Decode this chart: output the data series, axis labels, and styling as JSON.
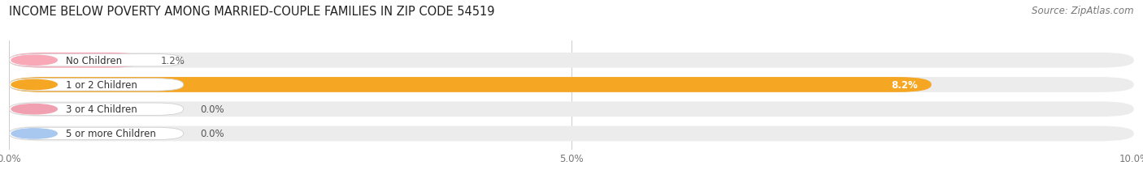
{
  "title": "INCOME BELOW POVERTY AMONG MARRIED-COUPLE FAMILIES IN ZIP CODE 54519",
  "source": "Source: ZipAtlas.com",
  "categories": [
    "No Children",
    "1 or 2 Children",
    "3 or 4 Children",
    "5 or more Children"
  ],
  "values": [
    1.2,
    8.2,
    0.0,
    0.0
  ],
  "bar_colors": [
    "#f9a8b8",
    "#f5a623",
    "#f0a0b0",
    "#a8c8f0"
  ],
  "xlim": [
    0,
    10.0
  ],
  "xticks": [
    0.0,
    5.0,
    10.0
  ],
  "xtick_labels": [
    "0.0%",
    "5.0%",
    "10.0%"
  ],
  "background_color": "#ffffff",
  "bar_bg_color": "#ececec",
  "title_fontsize": 10.5,
  "source_fontsize": 8.5,
  "label_fontsize": 8.5,
  "value_fontsize": 8.5,
  "bar_height": 0.62
}
